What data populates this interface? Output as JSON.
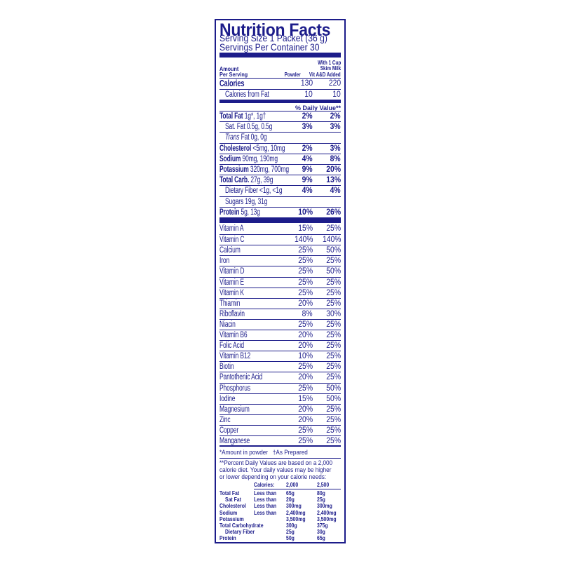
{
  "title": "Nutrition Facts",
  "serving_size": "Serving Size 1 Packet (36 g)",
  "servings_per_container": "Servings Per Container 30",
  "header": {
    "amount": "Amount",
    "per_serving": "Per Serving",
    "powder": "Powder",
    "milk_line1": "With 1 Cup",
    "milk_line2": "Skim Milk",
    "milk_line3": "Vit A&D Added"
  },
  "calories": {
    "label": "Calories",
    "powder": "130",
    "milk": "220"
  },
  "calories_from_fat": {
    "label": "Calories from Fat",
    "powder": "10",
    "milk": "10"
  },
  "daily_value_header": "% Daily Value**",
  "nutrients": [
    {
      "name": "Total Fat",
      "amount": " 1g*, 1g†",
      "powder": "2%",
      "milk": "2%",
      "sub": false
    },
    {
      "name": "Sat. Fat 0.5g, 0.5g",
      "amount": "",
      "powder": "3%",
      "milk": "3%",
      "sub": true
    },
    {
      "name": "Trans",
      "amount": " Fat 0g, 0g",
      "powder": "",
      "milk": "",
      "sub": true,
      "italic": true
    },
    {
      "name": "Cholesterol",
      "amount": " <5mg, 10mg",
      "powder": "2%",
      "milk": "3%",
      "sub": false
    },
    {
      "name": "Sodium",
      "amount": " 90mg, 190mg",
      "powder": "4%",
      "milk": "8%",
      "sub": false
    },
    {
      "name": "Potassium",
      "amount": " 320mg, 700mg",
      "powder": "9%",
      "milk": "20%",
      "sub": false
    },
    {
      "name": "Total Carb.",
      "amount": " 27g, 39g",
      "powder": "9%",
      "milk": "13%",
      "sub": false
    },
    {
      "name": "Dietary Fiber <1g, <1g",
      "amount": "",
      "powder": "4%",
      "milk": "4%",
      "sub": true
    },
    {
      "name": "Sugars 19g, 31g",
      "amount": "",
      "powder": "",
      "milk": "",
      "sub": true
    },
    {
      "name": "Protein",
      "amount": " 5g, 13g",
      "powder": "10%",
      "milk": "26%",
      "sub": false
    }
  ],
  "vitamins": [
    {
      "name": "Vitamin A",
      "powder": "15%",
      "milk": "25%"
    },
    {
      "name": "Vitamin C",
      "powder": "140%",
      "milk": "140%"
    },
    {
      "name": "Calcium",
      "powder": "25%",
      "milk": "50%"
    },
    {
      "name": "Iron",
      "powder": "25%",
      "milk": "25%"
    },
    {
      "name": "Vitamin D",
      "powder": "25%",
      "milk": "50%"
    },
    {
      "name": "Vitamin E",
      "powder": "25%",
      "milk": "25%"
    },
    {
      "name": "Vitamin K",
      "powder": "25%",
      "milk": "25%"
    },
    {
      "name": "Thiamin",
      "powder": "20%",
      "milk": "25%"
    },
    {
      "name": "Riboflavin",
      "powder": "8%",
      "milk": "30%"
    },
    {
      "name": "Niacin",
      "powder": "25%",
      "milk": "25%"
    },
    {
      "name": "Vitamin B6",
      "powder": "20%",
      "milk": "25%"
    },
    {
      "name": "Folic Acid",
      "powder": "20%",
      "milk": "25%"
    },
    {
      "name": "Vitamin B12",
      "powder": "10%",
      "milk": "25%"
    },
    {
      "name": "Biotin",
      "powder": "25%",
      "milk": "25%"
    },
    {
      "name": "Pantothenic Acid",
      "powder": "20%",
      "milk": "25%"
    },
    {
      "name": "Phosphorus",
      "powder": "25%",
      "milk": "50%"
    },
    {
      "name": "Iodine",
      "powder": "15%",
      "milk": "50%"
    },
    {
      "name": "Magnesium",
      "powder": "20%",
      "milk": "25%"
    },
    {
      "name": "Zinc",
      "powder": "20%",
      "milk": "25%"
    },
    {
      "name": "Copper",
      "powder": "25%",
      "milk": "25%"
    },
    {
      "name": "Manganese",
      "powder": "25%",
      "milk": "25%"
    }
  ],
  "footnote_amount": "*Amount in powder",
  "footnote_prepared": "†As Prepared",
  "footnote_dv": [
    "**Percent Daily Values are based on a 2,000",
    "calorie diet. Your daily values may be higher",
    "or lower depending on your calorie needs:"
  ],
  "dv_table": {
    "header": [
      "",
      "Calories:",
      "2,000",
      "2,500"
    ],
    "rows": [
      [
        "Total Fat",
        "Less than",
        "65g",
        "80g"
      ],
      [
        "  Sat Fat",
        "Less than",
        "20g",
        "25g"
      ],
      [
        "Cholesterol",
        "Less than",
        "300mg",
        "300mg"
      ],
      [
        "Sodium",
        "Less than",
        "2,400mg",
        "2,400mg"
      ],
      [
        "Potassium",
        "",
        "3,500mg",
        "3,500mg"
      ],
      [
        "Total Carbohydrate",
        "",
        "300g",
        "375g"
      ],
      [
        "  Dietary Fiber",
        "",
        "25g",
        "30g"
      ],
      [
        "Protein",
        "",
        "50g",
        "65g"
      ]
    ]
  },
  "colors": {
    "ink": "#1c1c8a",
    "background": "#ffffff"
  }
}
